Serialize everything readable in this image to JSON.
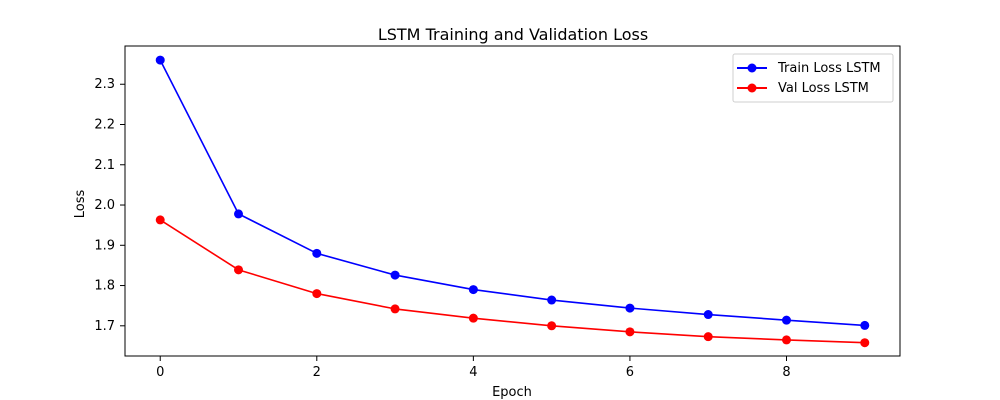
{
  "chart_data": {
    "type": "line",
    "title": "LSTM Training and Validation Loss",
    "xlabel": "Epoch",
    "ylabel": "Loss",
    "x": [
      0,
      1,
      2,
      3,
      4,
      5,
      6,
      7,
      8,
      9
    ],
    "xlim": [
      -0.45,
      9.45
    ],
    "ylim": [
      1.625,
      2.395
    ],
    "xticks": [
      0,
      2,
      4,
      6,
      8
    ],
    "yticks": [
      1.7,
      1.8,
      1.9,
      2.0,
      2.1,
      2.2,
      2.3
    ],
    "xtick_labels": [
      "0",
      "2",
      "4",
      "6",
      "8"
    ],
    "ytick_labels": [
      "1.7",
      "1.8",
      "1.9",
      "2.0",
      "2.1",
      "2.2",
      "2.3"
    ],
    "grid": false,
    "legend_position": "top-right",
    "series": [
      {
        "name": "Train Loss LSTM",
        "color": "#0000ff",
        "marker": "circle",
        "values": [
          2.36,
          1.978,
          1.88,
          1.826,
          1.79,
          1.764,
          1.744,
          1.728,
          1.714,
          1.701
        ]
      },
      {
        "name": "Val Loss LSTM",
        "color": "#ff0000",
        "marker": "circle",
        "values": [
          1.963,
          1.839,
          1.78,
          1.742,
          1.719,
          1.7,
          1.685,
          1.673,
          1.665,
          1.658
        ]
      }
    ]
  }
}
